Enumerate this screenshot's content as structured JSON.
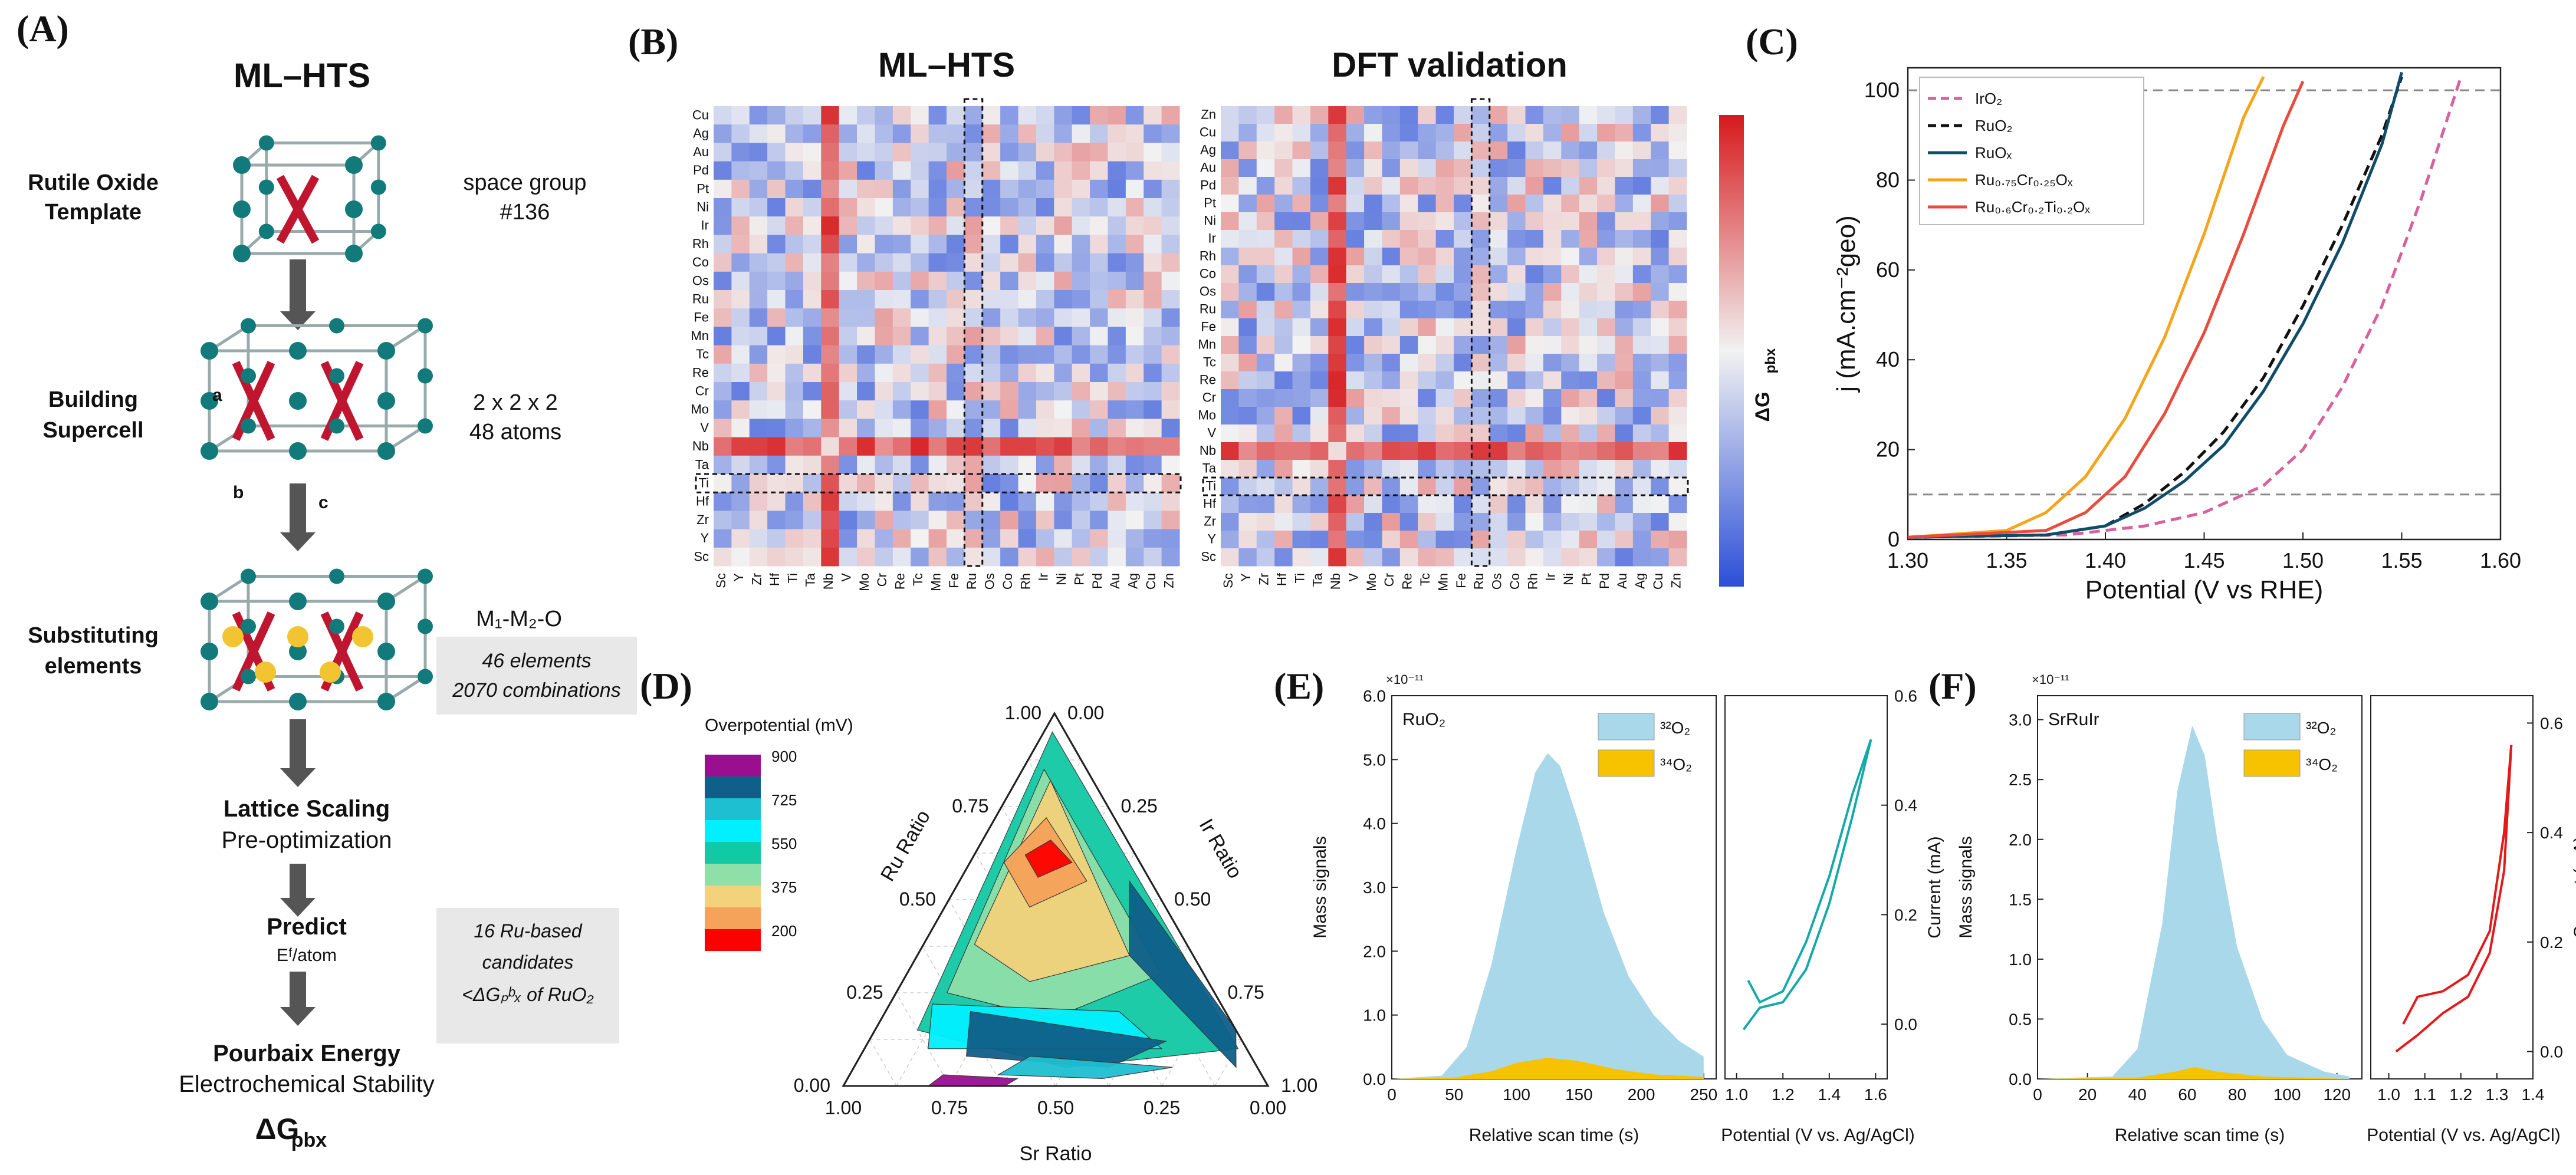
{
  "colors": {
    "heat_low": "#2b4fd8",
    "heat_mid": "#f2f2f2",
    "heat_high": "#d7191c",
    "arrow": "#555555",
    "note_box": "#e8e8e8",
    "mass32": "#a8d8ea",
    "mass34": "#f7c200",
    "current_E": "#17a8a8",
    "current_F": "#e31a1c",
    "dashed_ref": "#888888"
  },
  "panelA": {
    "label": "(A)",
    "title": "ML–HTS",
    "steps": [
      {
        "name": "Rutile Oxide Template",
        "note": "space group #136",
        "note_boxed": false
      },
      {
        "name": "Building Supercell",
        "note": "2 x 2 x 2 48 atoms",
        "note_boxed": false
      },
      {
        "name": "Substituting elements",
        "note": "M₁-M₂-O",
        "note2": "46 elements 2070 combinations",
        "note_boxed": true
      },
      {
        "name": "Lattice Scaling",
        "sub": "Pre-optimization"
      },
      {
        "name": "Predict",
        "sub": "Eᶠ/atom",
        "note": "16 Ru-based candidates <ΔGₚᵇₓ of RuO₂",
        "note_boxed": true
      },
      {
        "name": "Pourbaix Energy",
        "sub": "Electrochemical Stability"
      }
    ],
    "final": "ΔG",
    "final_sub": "pbx",
    "axis_labels": {
      "a": "a",
      "b": "b",
      "c": "c"
    }
  },
  "panelB": {
    "label": "(B)",
    "titles": [
      "ML–HTS",
      "DFT validation"
    ],
    "colorbar_label": "ΔG",
    "colorbar_sub": "pbx",
    "heatmap_left": {
      "rows": [
        "Cu",
        "Ag",
        "Au",
        "Pd",
        "Pt",
        "Ni",
        "Ir",
        "Rh",
        "Co",
        "Os",
        "Ru",
        "Fe",
        "Mn",
        "Tc",
        "Re",
        "Cr",
        "Mo",
        "V",
        "Nb",
        "Ta",
        "Ti",
        "Hf",
        "Zr",
        "Y",
        "Sc"
      ],
      "cols": [
        "Sc",
        "Y",
        "Zr",
        "Hf",
        "Ti",
        "Ta",
        "Nb",
        "V",
        "Mo",
        "Cr",
        "Re",
        "Tc",
        "Mn",
        "Fe",
        "Ru",
        "Os",
        "Co",
        "Rh",
        "Ir",
        "Ni",
        "Pt",
        "Pd",
        "Au",
        "Ag",
        "Cu",
        "Zn"
      ]
    },
    "heatmap_right": {
      "rows": [
        "Zn",
        "Cu",
        "Ag",
        "Au",
        "Pd",
        "Pt",
        "Ni",
        "Ir",
        "Rh",
        "Co",
        "Os",
        "Ru",
        "Fe",
        "Mn",
        "Tc",
        "Re",
        "Cr",
        "Mo",
        "V",
        "Nb",
        "Ta",
        "Ti",
        "Hf",
        "Zr",
        "Y",
        "Sc"
      ],
      "cols": [
        "Sc",
        "Y",
        "Zr",
        "Hf",
        "Ti",
        "Ta",
        "Nb",
        "V",
        "Mo",
        "Cr",
        "Re",
        "Tc",
        "Mn",
        "Fe",
        "Ru",
        "Os",
        "Co",
        "Rh",
        "Ir",
        "Ni",
        "Pt",
        "Pd",
        "Au",
        "Ag",
        "Cu",
        "Zn"
      ]
    },
    "highlight": {
      "row": "Ti",
      "col": "Ru"
    }
  },
  "chart_data": [
    {
      "panel": "C",
      "type": "line",
      "label": "(C)",
      "xlabel": "Potential (V vs RHE)",
      "ylabel": "j (mA.cm⁻²geo)",
      "xlim": [
        1.3,
        1.6
      ],
      "ylim": [
        0,
        105
      ],
      "xticks": [
        "1.30",
        "1.35",
        "1.40",
        "1.45",
        "1.50",
        "1.55",
        "1.60"
      ],
      "yticks": [
        "0",
        "20",
        "40",
        "60",
        "80",
        "100"
      ],
      "reference_lines": [
        100,
        10
      ],
      "legend_position": "top-left",
      "series": [
        {
          "name": "IrO₂",
          "color": "#d9609a",
          "dash": "dashed",
          "x": [
            1.3,
            1.38,
            1.42,
            1.45,
            1.48,
            1.5,
            1.52,
            1.54,
            1.56,
            1.58
          ],
          "y": [
            0.5,
            1,
            3,
            6,
            12,
            20,
            34,
            52,
            76,
            103
          ]
        },
        {
          "name": "RuO₂",
          "color": "#111111",
          "dash": "dashed",
          "x": [
            1.3,
            1.37,
            1.4,
            1.42,
            1.44,
            1.46,
            1.48,
            1.5,
            1.52,
            1.54,
            1.55
          ],
          "y": [
            0.5,
            1,
            3,
            8,
            15,
            24,
            36,
            52,
            70,
            90,
            103
          ]
        },
        {
          "name": "RuOₓ",
          "color": "#0f4c6a",
          "dash": "solid",
          "x": [
            1.3,
            1.37,
            1.4,
            1.42,
            1.44,
            1.46,
            1.48,
            1.5,
            1.52,
            1.54,
            1.55
          ],
          "y": [
            0.5,
            1,
            3,
            7,
            13,
            21,
            33,
            48,
            66,
            88,
            104
          ]
        },
        {
          "name": "Ru₀.₇₅Cr₀.₂₅Oₓ",
          "color": "#f7a41d",
          "dash": "solid",
          "x": [
            1.3,
            1.35,
            1.37,
            1.39,
            1.41,
            1.43,
            1.45,
            1.47,
            1.48
          ],
          "y": [
            0.5,
            2,
            6,
            14,
            27,
            45,
            68,
            94,
            103
          ]
        },
        {
          "name": "Ru₀.₆Cr₀.₂Ti₀.₂Oₓ",
          "color": "#ea4b3c",
          "dash": "solid",
          "x": [
            1.3,
            1.37,
            1.39,
            1.41,
            1.43,
            1.45,
            1.47,
            1.49,
            1.5
          ],
          "y": [
            0.5,
            2,
            6,
            14,
            28,
            46,
            68,
            92,
            102
          ]
        }
      ]
    },
    {
      "panel": "D",
      "type": "heatmap",
      "label": "(D)",
      "subtype": "ternary-contour",
      "legend_title": "Overpotential (mV)",
      "legend_levels": [
        {
          "value": "900",
          "color": "#990f8f"
        },
        {
          "value": "",
          "color": "#0f5f8a"
        },
        {
          "value": "725",
          "color": "#1dbfd0"
        },
        {
          "value": "",
          "color": "#00f0ff"
        },
        {
          "value": "550",
          "color": "#11c9a5"
        },
        {
          "value": "",
          "color": "#8ee0a8"
        },
        {
          "value": "375",
          "color": "#f2d27a"
        },
        {
          "value": "",
          "color": "#f5a35a"
        },
        {
          "value": "200",
          "color": "#ff0000"
        }
      ],
      "axis_labels": {
        "ru": "Ru Ratio",
        "ir": "Ir Ratio",
        "sr": "Sr Ratio"
      },
      "left_ticks": [
        "0.00",
        "0.25",
        "0.50",
        "0.75",
        "1.00"
      ],
      "right_ticks": [
        "0.00",
        "0.25",
        "0.50",
        "0.75",
        "1.00"
      ],
      "bottom_ticks": [
        "1.00",
        "0.75",
        "0.50",
        "0.25",
        "0.00"
      ]
    },
    {
      "panel": "E",
      "type": "area",
      "label": "(E)",
      "sample": "RuO₂",
      "exponent": "×10⁻¹¹",
      "ylabel": "Mass signals",
      "xlabel": "Relative scan time (s)",
      "ylim": [
        0,
        6.0
      ],
      "xlim": [
        0,
        260
      ],
      "yticks": [
        "0.0",
        "1.0",
        "2.0",
        "3.0",
        "4.0",
        "5.0",
        "6.0"
      ],
      "xticks": [
        "0",
        "50",
        "100",
        "150",
        "200",
        "250"
      ],
      "legend": [
        "³²O₂",
        "³⁴O₂"
      ],
      "series": [
        {
          "name": "32O2",
          "x": [
            0,
            40,
            60,
            80,
            100,
            115,
            125,
            135,
            150,
            170,
            190,
            210,
            230,
            250
          ],
          "y": [
            0,
            0.05,
            0.5,
            1.8,
            3.6,
            4.8,
            5.1,
            4.9,
            4.0,
            2.6,
            1.6,
            1.0,
            0.6,
            0.35
          ]
        },
        {
          "name": "34O2",
          "x": [
            0,
            50,
            80,
            100,
            125,
            150,
            180,
            210,
            250
          ],
          "y": [
            0,
            0.02,
            0.12,
            0.25,
            0.33,
            0.28,
            0.15,
            0.07,
            0.03
          ]
        }
      ],
      "cv": {
        "xlabel": "Potential (V vs. Ag/AgCl)",
        "ylabel": "Current (mA)",
        "xlim": [
          0.95,
          1.65
        ],
        "ylim": [
          -0.1,
          0.6
        ],
        "xticks": [
          "1.0",
          "1.2",
          "1.4",
          "1.6"
        ],
        "yticks": [
          "0.0",
          "0.2",
          "0.4",
          "0.6"
        ],
        "forward": {
          "x": [
            1.03,
            1.1,
            1.2,
            1.3,
            1.4,
            1.5,
            1.58
          ],
          "y": [
            -0.01,
            0.03,
            0.04,
            0.1,
            0.22,
            0.38,
            0.52
          ]
        },
        "backward": {
          "x": [
            1.58,
            1.5,
            1.4,
            1.3,
            1.2,
            1.1,
            1.05
          ],
          "y": [
            0.52,
            0.42,
            0.27,
            0.15,
            0.06,
            0.04,
            0.08
          ]
        }
      }
    },
    {
      "panel": "F",
      "type": "area",
      "label": "(F)",
      "sample": "SrRuIr",
      "exponent": "×10⁻¹¹",
      "ylabel": "Mass signals",
      "xlabel": "Relative scan time (s)",
      "ylim": [
        0,
        3.2
      ],
      "xlim": [
        0,
        130
      ],
      "yticks": [
        "0.0",
        "0.5",
        "1.0",
        "1.5",
        "2.0",
        "2.5",
        "3.0"
      ],
      "xticks": [
        "0",
        "20",
        "40",
        "60",
        "80",
        "100",
        "120"
      ],
      "legend": [
        "³²O₂",
        "³⁴O₂"
      ],
      "series": [
        {
          "name": "32O2",
          "x": [
            0,
            30,
            40,
            50,
            56,
            62,
            67,
            72,
            80,
            90,
            100,
            115,
            125
          ],
          "y": [
            0,
            0.02,
            0.25,
            1.3,
            2.4,
            2.95,
            2.7,
            2.0,
            1.1,
            0.5,
            0.2,
            0.06,
            0.02
          ]
        },
        {
          "name": "34O2",
          "x": [
            0,
            40,
            55,
            63,
            72,
            90,
            125
          ],
          "y": [
            0,
            0.01,
            0.06,
            0.1,
            0.06,
            0.02,
            0
          ]
        }
      ],
      "cv": {
        "xlabel": "Potential (V vs. Ag/AgCl)",
        "ylabel": "Current (mA)",
        "xlim": [
          0.95,
          1.4
        ],
        "ylim": [
          -0.05,
          0.65
        ],
        "xticks": [
          "1.0",
          "1.1",
          "1.2",
          "1.3",
          "1.4"
        ],
        "yticks": [
          "0.0",
          "0.2",
          "0.4",
          "0.6"
        ],
        "forward": {
          "x": [
            1.02,
            1.08,
            1.15,
            1.22,
            1.28,
            1.32,
            1.34
          ],
          "y": [
            0.0,
            0.03,
            0.07,
            0.1,
            0.18,
            0.33,
            0.56
          ]
        },
        "backward": {
          "x": [
            1.34,
            1.32,
            1.28,
            1.22,
            1.15,
            1.08,
            1.04
          ],
          "y": [
            0.56,
            0.4,
            0.22,
            0.14,
            0.11,
            0.1,
            0.05
          ]
        }
      }
    }
  ]
}
